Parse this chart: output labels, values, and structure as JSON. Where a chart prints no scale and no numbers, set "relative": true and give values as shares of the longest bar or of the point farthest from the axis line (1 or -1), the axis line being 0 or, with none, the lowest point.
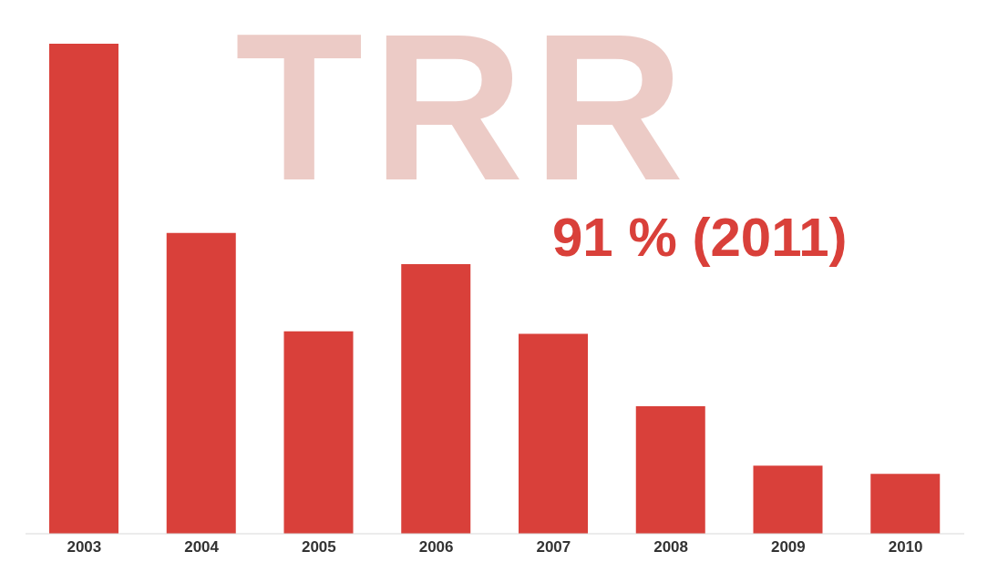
{
  "chart_data": {
    "type": "bar",
    "title": "TRR",
    "relative": true,
    "categories": [
      "2003",
      "2004",
      "2005",
      "2006",
      "2007",
      "2008",
      "2009",
      "2010"
    ],
    "values": [
      1,
      0.614,
      0.413,
      0.55,
      0.408,
      0.26,
      0.139,
      0.122
    ],
    "color": "#d9403a",
    "annotations": [
      "91 % (2011)"
    ],
    "grid": false,
    "legend": false
  }
}
